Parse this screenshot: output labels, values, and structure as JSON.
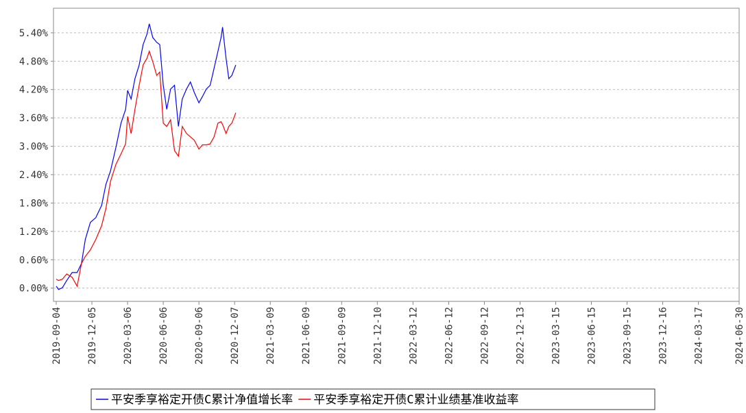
{
  "chart_data": {
    "type": "line",
    "x": [
      "2019-09-04",
      "2019-09-10",
      "2019-09-20",
      "2019-10-01",
      "2019-10-15",
      "2019-10-28",
      "2019-11-08",
      "2019-11-18",
      "2019-12-01",
      "2019-12-15",
      "2019-12-30",
      "2020-01-10",
      "2020-01-22",
      "2020-02-05",
      "2020-02-18",
      "2020-03-01",
      "2020-03-06",
      "2020-03-15",
      "2020-03-25",
      "2020-04-05",
      "2020-04-15",
      "2020-04-25",
      "2020-05-01",
      "2020-05-10",
      "2020-05-20",
      "2020-05-28",
      "2020-06-06",
      "2020-06-15",
      "2020-06-25",
      "2020-07-05",
      "2020-07-15",
      "2020-07-25",
      "2020-08-05",
      "2020-08-15",
      "2020-08-25",
      "2020-09-06",
      "2020-09-15",
      "2020-09-25",
      "2020-10-05",
      "2020-10-15",
      "2020-10-25",
      "2020-11-02",
      "2020-11-06",
      "2020-11-15",
      "2020-11-22",
      "2020-11-30",
      "2020-12-10"
    ],
    "series": [
      {
        "name": "平安季享裕定开债C累计净值增长率",
        "color": "#0000ff",
        "values": [
          0.04,
          -0.03,
          0.01,
          0.16,
          0.33,
          0.33,
          0.52,
          1.03,
          1.39,
          1.49,
          1.75,
          2.19,
          2.48,
          2.98,
          3.49,
          3.78,
          4.18,
          4.0,
          4.43,
          4.72,
          5.15,
          5.37,
          5.59,
          5.3,
          5.2,
          5.15,
          4.29,
          3.78,
          4.21,
          4.29,
          3.42,
          4.0,
          4.21,
          4.36,
          4.14,
          3.92,
          4.05,
          4.21,
          4.29,
          4.65,
          5.01,
          5.3,
          5.52,
          4.86,
          4.43,
          4.5,
          4.72
        ]
      },
      {
        "name": "平安季享裕定开债C累计业绩基准收益率",
        "color": "#ff0000",
        "values": [
          0.19,
          0.16,
          0.19,
          0.3,
          0.23,
          0.04,
          0.52,
          0.67,
          0.81,
          1.03,
          1.32,
          1.68,
          2.26,
          2.62,
          2.84,
          3.05,
          3.63,
          3.27,
          3.78,
          4.29,
          4.72,
          4.86,
          5.01,
          4.79,
          4.5,
          4.57,
          3.49,
          3.42,
          3.56,
          2.91,
          2.79,
          3.42,
          3.27,
          3.2,
          3.13,
          2.94,
          3.03,
          3.03,
          3.05,
          3.2,
          3.49,
          3.52,
          3.46,
          3.27,
          3.42,
          3.49,
          3.71
        ]
      }
    ],
    "xlim": [
      "2019-09-04",
      "2024-06-30"
    ],
    "xticks": [
      "2019-09-04",
      "2019-12-05",
      "2020-03-06",
      "2020-06-06",
      "2020-09-06",
      "2020-12-07",
      "2021-03-09",
      "2021-06-09",
      "2021-09-09",
      "2021-12-10",
      "2022-03-12",
      "2022-06-12",
      "2022-09-12",
      "2022-12-13",
      "2023-03-15",
      "2023-06-15",
      "2023-09-15",
      "2023-12-16",
      "2024-03-17",
      "2024-06-30"
    ],
    "ylim": [
      -0.28,
      5.92
    ],
    "yticks": [
      {
        "value": 0,
        "label": "0.00%"
      },
      {
        "value": 0.6,
        "label": "0.60%"
      },
      {
        "value": 1.2,
        "label": "1.20%"
      },
      {
        "value": 1.8,
        "label": "1.80%"
      },
      {
        "value": 2.4,
        "label": "2.40%"
      },
      {
        "value": 3.0,
        "label": "3.00%"
      },
      {
        "value": 3.6,
        "label": "3.60%"
      },
      {
        "value": 4.2,
        "label": "4.20%"
      },
      {
        "value": 4.8,
        "label": "4.80%"
      },
      {
        "value": 5.4,
        "label": "5.40%"
      }
    ],
    "grid": true
  }
}
